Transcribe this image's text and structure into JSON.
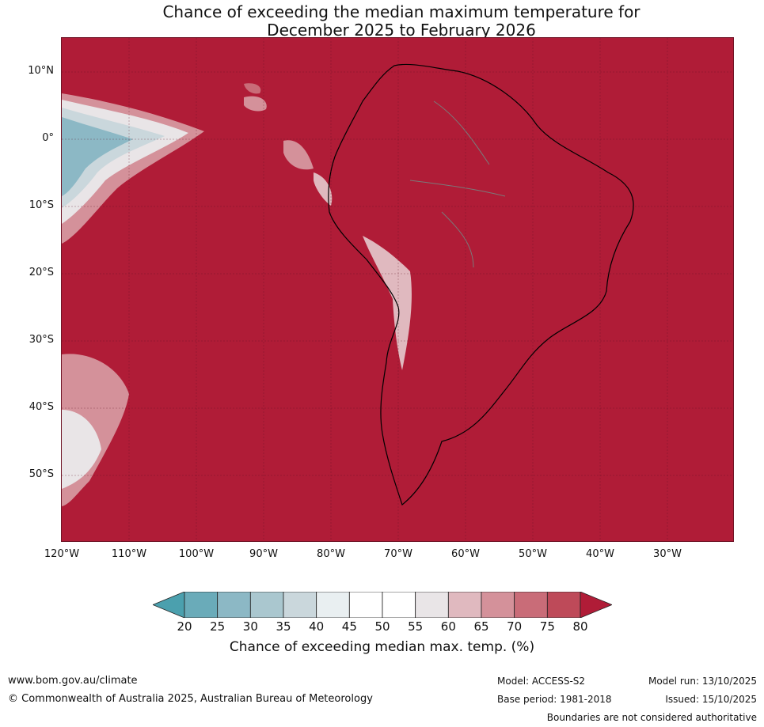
{
  "title_line1": "Chance of exceeding the median maximum temperature for",
  "title_line2": "December 2025 to February 2026",
  "lat_labels": [
    "10°N",
    "0°",
    "10°S",
    "20°S",
    "30°S",
    "40°S",
    "50°S"
  ],
  "lon_labels": [
    "120°W",
    "110°W",
    "100°W",
    "90°W",
    "80°W",
    "70°W",
    "60°W",
    "50°W",
    "40°W",
    "30°W"
  ],
  "colorbar": {
    "ticks": [
      "20",
      "25",
      "30",
      "35",
      "40",
      "45",
      "50",
      "55",
      "60",
      "65",
      "70",
      "75",
      "80"
    ],
    "colors": [
      "#4ba0ae",
      "#6aabb9",
      "#8cb8c5",
      "#aac7cf",
      "#cad7dc",
      "#e9eff1",
      "#ffffff",
      "#ffffff",
      "#e9e5e7",
      "#e0b9bf",
      "#d4919a",
      "#c96c78",
      "#be4a59",
      "#b01c37"
    ],
    "label": "Chance of exceeding median max. temp. (%)"
  },
  "footer": {
    "url": "www.bom.gov.au/climate",
    "copyright": "© Commonwealth of Australia 2025, Australian Bureau of Meteorology",
    "model": "Model: ACCESS-S2",
    "base_period": "Base period: 1981-2018",
    "model_run": "Model run: 13/10/2025",
    "issued": "Issued: 15/10/2025",
    "disclaimer": "Boundaries are not considered authoritative"
  }
}
